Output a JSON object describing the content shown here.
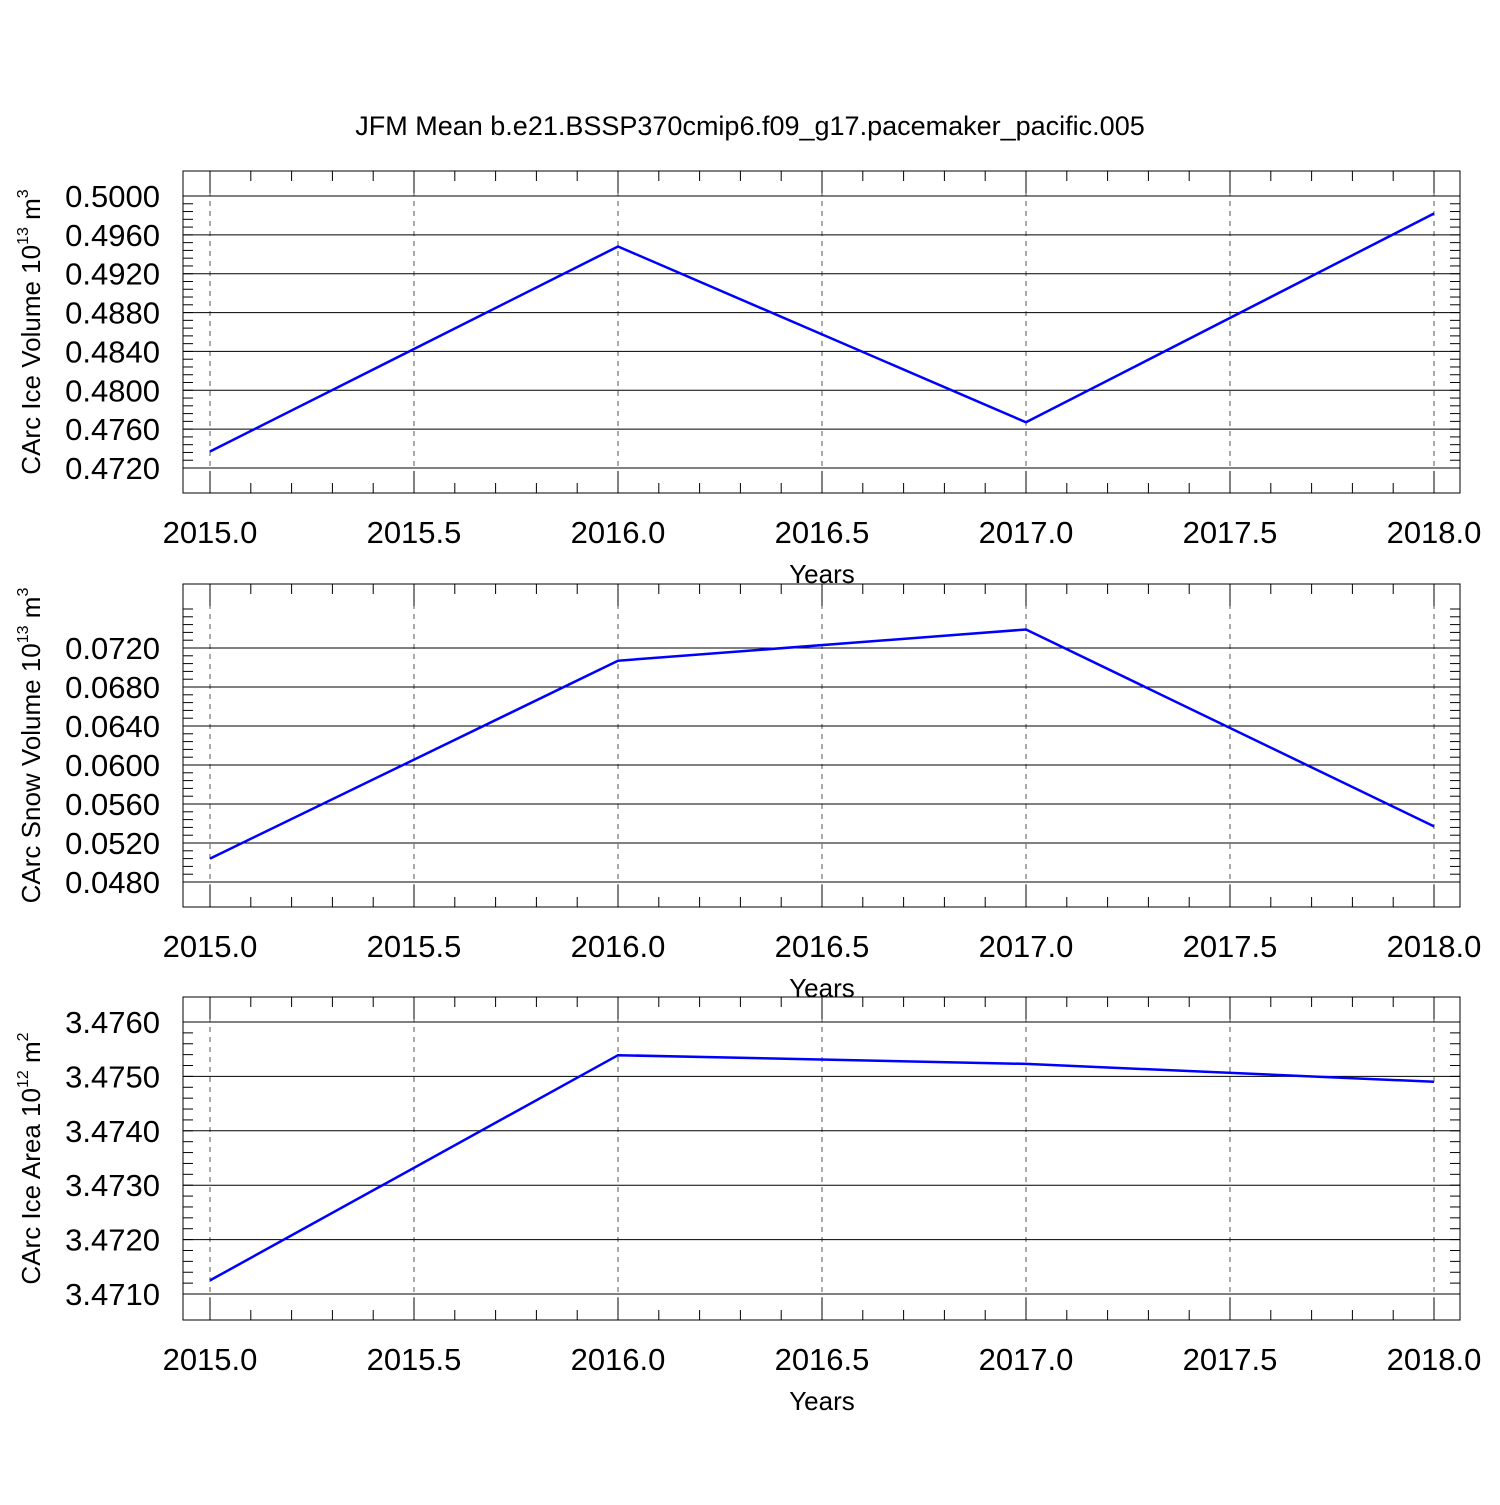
{
  "title": "JFM Mean b.e21.BSSP370cmip6.f09_g17.pacemaker_pacific.005",
  "colors": {
    "line": "#0000ff",
    "axis": "#000000",
    "grid": "#555555"
  },
  "chart_data": [
    {
      "type": "line",
      "ylabel": {
        "text": "CArc Ice Volume 10",
        "exponent": "13",
        "unit": " m",
        "unit_exponent": "3"
      },
      "xlabel": "Years",
      "x": [
        2015,
        2016,
        2017,
        2018
      ],
      "series": [
        {
          "values": [
            0.4737,
            0.4948,
            0.4767,
            0.4982
          ]
        }
      ],
      "xlim": [
        2015,
        2018
      ],
      "ylim": [
        0.472,
        0.5
      ],
      "xticks": [
        "2015.0",
        "2015.5",
        "2016.0",
        "2016.5",
        "2017.0",
        "2017.5",
        "2018.0"
      ],
      "yticks": [
        "0.4720",
        "0.4760",
        "0.4800",
        "0.4840",
        "0.4880",
        "0.4920",
        "0.4960",
        "0.5000"
      ],
      "grid": "vertical dashed"
    },
    {
      "type": "line",
      "ylabel": {
        "text": "CArc Snow Volume 10",
        "exponent": "13",
        "unit": " m",
        "unit_exponent": "3"
      },
      "xlabel": "Years",
      "x": [
        2015,
        2016,
        2017,
        2018
      ],
      "series": [
        {
          "values": [
            0.0504,
            0.0707,
            0.0739,
            0.0537
          ]
        }
      ],
      "xlim": [
        2015,
        2018
      ],
      "ylim": [
        0.048,
        0.076
      ],
      "xticks": [
        "2015.0",
        "2015.5",
        "2016.0",
        "2016.5",
        "2017.0",
        "2017.5",
        "2018.0"
      ],
      "yticks": [
        "0.0480",
        "0.0520",
        "0.0560",
        "0.0600",
        "0.0640",
        "0.0680",
        "0.0720"
      ],
      "grid": "vertical dashed"
    },
    {
      "type": "line",
      "ylabel": {
        "text": "CArc Ice Area 10",
        "exponent": "12",
        "unit": " m",
        "unit_exponent": "2"
      },
      "xlabel": "Years",
      "x": [
        2015,
        2016,
        2017,
        2018
      ],
      "series": [
        {
          "values": [
            3.47125,
            3.47539,
            3.47523,
            3.4749
          ]
        }
      ],
      "xlim": [
        2015,
        2018
      ],
      "ylim": [
        3.471,
        3.476
      ],
      "xticks": [
        "2015.0",
        "2015.5",
        "2016.0",
        "2016.5",
        "2017.0",
        "2017.5",
        "2018.0"
      ],
      "yticks": [
        "3.4710",
        "3.4720",
        "3.4730",
        "3.4740",
        "3.4750",
        "3.4760"
      ],
      "grid": "vertical dashed"
    }
  ]
}
